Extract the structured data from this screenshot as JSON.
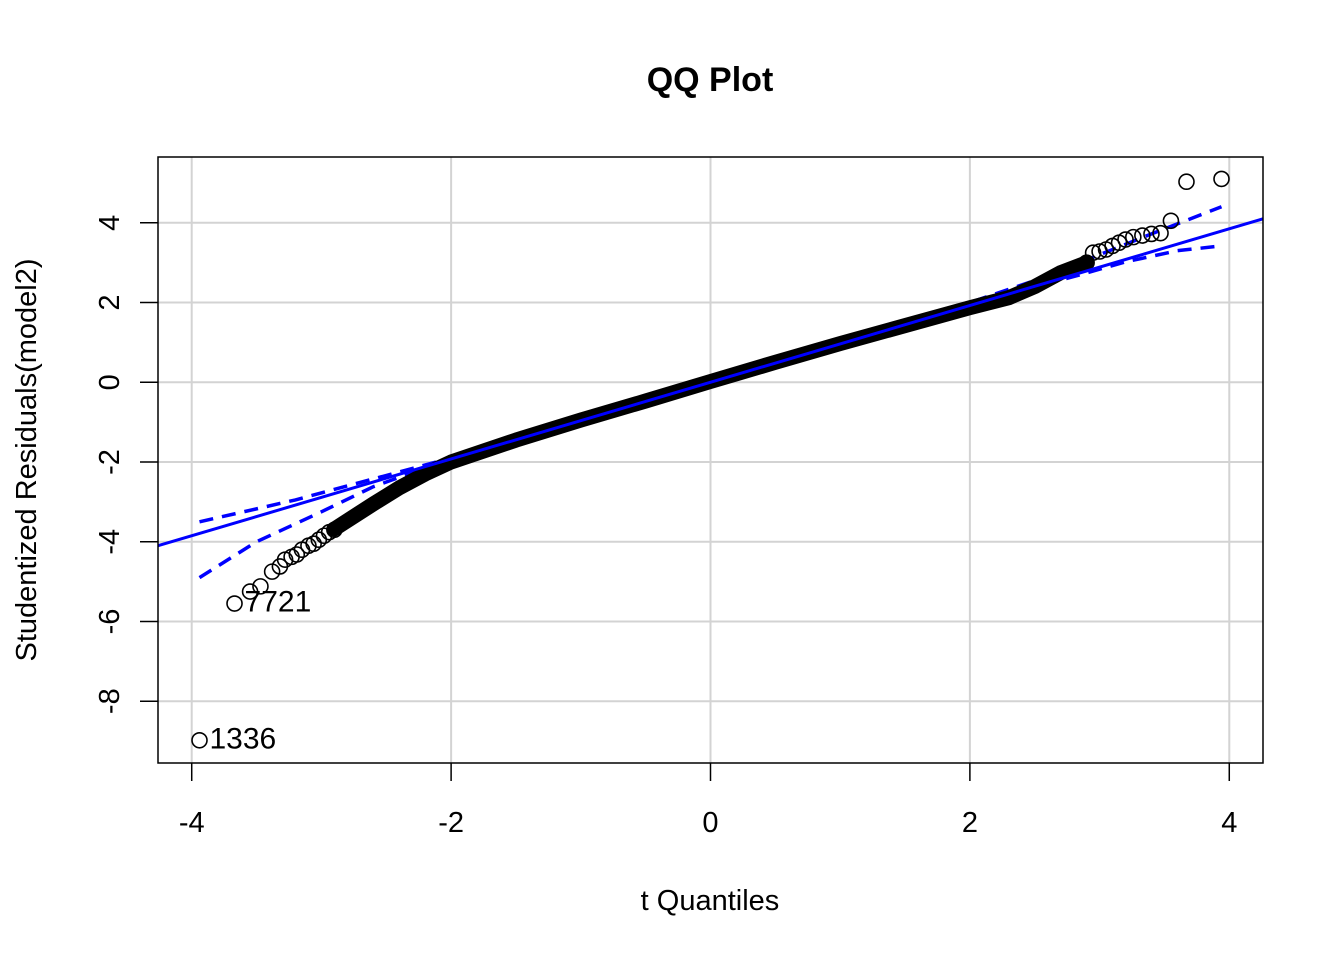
{
  "chart_data": {
    "type": "scatter",
    "title": "QQ Plot",
    "xlabel": "t Quantiles",
    "ylabel": "Studentized Residuals(model2)",
    "xlim": [
      -4.26,
      4.26
    ],
    "ylim": [
      -9.55,
      5.65
    ],
    "xticks": [
      -4,
      -2,
      0,
      2,
      4
    ],
    "yticks": [
      -8,
      -6,
      -4,
      -2,
      0,
      2,
      4
    ],
    "xtick_labels": [
      "-4",
      "-2",
      "0",
      "2",
      "4"
    ],
    "ytick_labels": [
      "-8",
      "-6",
      "-4",
      "-2",
      "0",
      "2",
      "4"
    ],
    "grid": true,
    "legend": "none",
    "colors": {
      "points": "#000000",
      "reference_line": "#0000ff",
      "envelope": "#0000ff",
      "grid": "#d3d3d3",
      "frame": "#000000"
    },
    "points": [
      {
        "x": -3.94,
        "y": -8.98,
        "label": "1336"
      },
      {
        "x": -3.67,
        "y": -5.55,
        "label": "7721"
      },
      {
        "x": -3.55,
        "y": -5.25,
        "label": ""
      },
      {
        "x": -3.47,
        "y": -5.12,
        "label": ""
      },
      {
        "x": -3.38,
        "y": -4.75,
        "label": ""
      },
      {
        "x": -3.32,
        "y": -4.62,
        "label": ""
      },
      {
        "x": -3.28,
        "y": -4.45,
        "label": ""
      },
      {
        "x": -3.23,
        "y": -4.38,
        "label": ""
      },
      {
        "x": -3.19,
        "y": -4.32,
        "label": ""
      },
      {
        "x": -3.15,
        "y": -4.2,
        "label": ""
      },
      {
        "x": -3.1,
        "y": -4.1,
        "label": ""
      },
      {
        "x": -3.06,
        "y": -4.05,
        "label": ""
      },
      {
        "x": -3.02,
        "y": -3.95,
        "label": ""
      },
      {
        "x": -2.98,
        "y": -3.85,
        "label": ""
      },
      {
        "x": -2.94,
        "y": -3.76,
        "label": ""
      },
      {
        "x": -2.9,
        "y": -3.7,
        "label": ""
      },
      {
        "x": 2.9,
        "y": 3.0,
        "label": ""
      },
      {
        "x": 2.95,
        "y": 3.25,
        "label": ""
      },
      {
        "x": 3.0,
        "y": 3.28,
        "label": ""
      },
      {
        "x": 3.05,
        "y": 3.33,
        "label": ""
      },
      {
        "x": 3.1,
        "y": 3.42,
        "label": ""
      },
      {
        "x": 3.15,
        "y": 3.5,
        "label": ""
      },
      {
        "x": 3.2,
        "y": 3.58,
        "label": ""
      },
      {
        "x": 3.26,
        "y": 3.64,
        "label": ""
      },
      {
        "x": 3.33,
        "y": 3.68,
        "label": ""
      },
      {
        "x": 3.4,
        "y": 3.72,
        "label": ""
      },
      {
        "x": 3.47,
        "y": 3.74,
        "label": ""
      },
      {
        "x": 3.55,
        "y": 4.05,
        "label": ""
      },
      {
        "x": 3.67,
        "y": 5.03,
        "label": ""
      },
      {
        "x": 3.94,
        "y": 5.1,
        "label": ""
      }
    ],
    "body_curve": [
      {
        "x": -2.9,
        "y": -3.68
      },
      {
        "x": -2.6,
        "y": -3.05
      },
      {
        "x": -2.4,
        "y": -2.65
      },
      {
        "x": -2.2,
        "y": -2.3
      },
      {
        "x": -2.0,
        "y": -2.0
      },
      {
        "x": -1.5,
        "y": -1.45
      },
      {
        "x": -1.0,
        "y": -0.95
      },
      {
        "x": -0.5,
        "y": -0.47
      },
      {
        "x": 0.0,
        "y": 0.02
      },
      {
        "x": 0.5,
        "y": 0.5
      },
      {
        "x": 1.0,
        "y": 0.97
      },
      {
        "x": 1.5,
        "y": 1.42
      },
      {
        "x": 2.0,
        "y": 1.87
      },
      {
        "x": 2.3,
        "y": 2.12
      },
      {
        "x": 2.5,
        "y": 2.4
      },
      {
        "x": 2.7,
        "y": 2.75
      },
      {
        "x": 2.9,
        "y": 3.0
      }
    ],
    "reference_line": {
      "x0": -4.26,
      "y0": -4.1,
      "x1": 4.26,
      "y1": 4.1
    },
    "envelope_upper": [
      {
        "x": -3.94,
        "y": -3.5
      },
      {
        "x": -3.6,
        "y": -3.25
      },
      {
        "x": -3.2,
        "y": -2.95
      },
      {
        "x": -2.8,
        "y": -2.6
      },
      {
        "x": -2.4,
        "y": -2.25
      },
      {
        "x": -2.0,
        "y": -1.9
      },
      {
        "x": -1.5,
        "y": -1.4
      },
      {
        "x": -1.0,
        "y": -0.92
      },
      {
        "x": -0.5,
        "y": -0.43
      },
      {
        "x": 0.0,
        "y": 0.06
      },
      {
        "x": 0.5,
        "y": 0.54
      },
      {
        "x": 1.0,
        "y": 1.03
      },
      {
        "x": 1.5,
        "y": 1.52
      },
      {
        "x": 2.0,
        "y": 2.0
      },
      {
        "x": 2.5,
        "y": 2.55
      },
      {
        "x": 3.0,
        "y": 3.2
      },
      {
        "x": 3.4,
        "y": 3.72
      },
      {
        "x": 3.94,
        "y": 4.4
      }
    ],
    "envelope_lower": [
      {
        "x": -3.94,
        "y": -4.9
      },
      {
        "x": -3.5,
        "y": -4.0
      },
      {
        "x": -3.0,
        "y": -3.25
      },
      {
        "x": -2.6,
        "y": -2.62
      },
      {
        "x": -2.2,
        "y": -2.15
      },
      {
        "x": -2.0,
        "y": -1.95
      },
      {
        "x": -1.5,
        "y": -1.48
      },
      {
        "x": -1.0,
        "y": -1.0
      },
      {
        "x": -0.5,
        "y": -0.51
      },
      {
        "x": 0.0,
        "y": -0.03
      },
      {
        "x": 0.5,
        "y": 0.45
      },
      {
        "x": 1.0,
        "y": 0.94
      },
      {
        "x": 1.5,
        "y": 1.43
      },
      {
        "x": 2.0,
        "y": 1.92
      },
      {
        "x": 2.4,
        "y": 2.3
      },
      {
        "x": 2.8,
        "y": 2.65
      },
      {
        "x": 3.2,
        "y": 3.02
      },
      {
        "x": 3.6,
        "y": 3.3
      },
      {
        "x": 3.94,
        "y": 3.42
      }
    ]
  }
}
